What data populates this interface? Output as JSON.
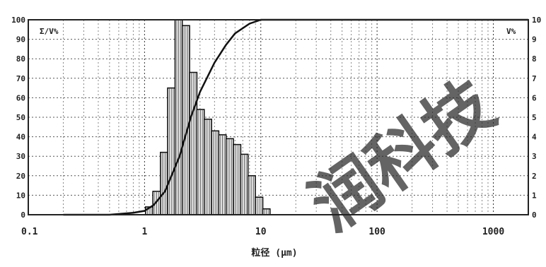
{
  "chart_data": {
    "type": "bar",
    "xscale": "log",
    "xlim": [
      0.1,
      2000
    ],
    "ylim_left": [
      0,
      100
    ],
    "ylim_right": [
      0,
      10
    ],
    "grid": true,
    "title": "",
    "xlabel": "粒径 (μm)",
    "ylabel_left": "Σ/V%",
    "ylabel_right": "V%",
    "x_ticks": [
      {
        "v": 0.1,
        "label": "0.1"
      },
      {
        "v": 1,
        "label": "1"
      },
      {
        "v": 10,
        "label": "10"
      },
      {
        "v": 100,
        "label": "100"
      },
      {
        "v": 1000,
        "label": "1000"
      }
    ],
    "y_ticks_left": [
      "0",
      "10",
      "20",
      "30",
      "40",
      "50",
      "60",
      "70",
      "80",
      "90",
      "100"
    ],
    "y_ticks_right": [
      "0",
      "1",
      "2",
      "3",
      "4",
      "5",
      "6",
      "7",
      "8",
      "9",
      "10"
    ],
    "histogram": {
      "axis": "right",
      "bins": [
        {
          "x0": 1.02,
          "x1": 1.18,
          "v": 0.4
        },
        {
          "x0": 1.18,
          "x1": 1.37,
          "v": 1.2
        },
        {
          "x0": 1.37,
          "x1": 1.58,
          "v": 3.2
        },
        {
          "x0": 1.58,
          "x1": 1.83,
          "v": 6.5
        },
        {
          "x0": 1.83,
          "x1": 2.11,
          "v": 10.0
        },
        {
          "x0": 2.11,
          "x1": 2.44,
          "v": 9.7
        },
        {
          "x0": 2.44,
          "x1": 2.82,
          "v": 7.3
        },
        {
          "x0": 2.82,
          "x1": 3.26,
          "v": 5.4
        },
        {
          "x0": 3.26,
          "x1": 3.77,
          "v": 4.9
        },
        {
          "x0": 3.77,
          "x1": 4.35,
          "v": 4.3
        },
        {
          "x0": 4.35,
          "x1": 5.03,
          "v": 4.1
        },
        {
          "x0": 5.03,
          "x1": 5.81,
          "v": 3.9
        },
        {
          "x0": 5.81,
          "x1": 6.72,
          "v": 3.6
        },
        {
          "x0": 6.72,
          "x1": 7.76,
          "v": 3.1
        },
        {
          "x0": 7.76,
          "x1": 8.97,
          "v": 2.0
        },
        {
          "x0": 8.97,
          "x1": 10.4,
          "v": 0.9
        },
        {
          "x0": 10.4,
          "x1": 12.0,
          "v": 0.3
        }
      ]
    },
    "series": [
      {
        "axis": "left",
        "type": "line",
        "x": [
          0.2,
          0.5,
          0.8,
          1.0,
          1.2,
          1.5,
          2.0,
          2.5,
          3.0,
          4.0,
          5.0,
          6.0,
          8.0,
          10.0,
          12.0,
          2000
        ],
        "y": [
          0,
          0,
          1,
          2,
          5,
          12,
          30,
          50,
          63,
          78,
          87,
          93,
          98,
          100,
          100,
          100
        ]
      }
    ],
    "watermark": "润科技"
  }
}
